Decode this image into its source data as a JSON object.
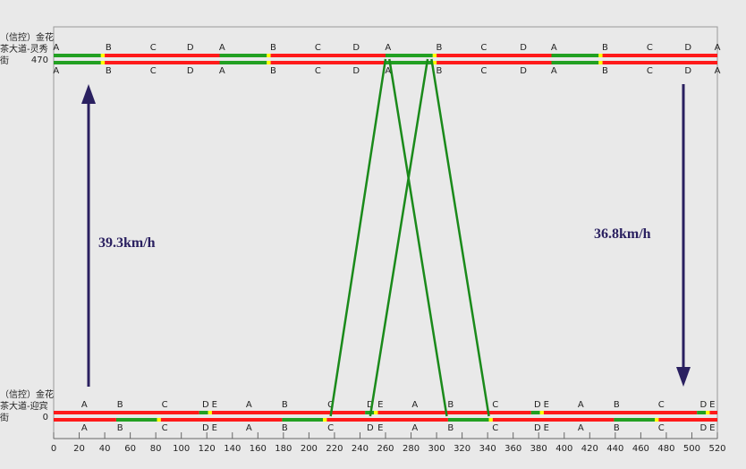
{
  "chart_data": {
    "type": "time-space",
    "xlim": [
      0,
      520
    ],
    "xticks": [
      0,
      20,
      40,
      60,
      80,
      100,
      120,
      140,
      160,
      180,
      200,
      220,
      240,
      260,
      280,
      300,
      320,
      340,
      360,
      380,
      400,
      420,
      440,
      460,
      480,
      500,
      520
    ],
    "ylim": [
      0,
      470
    ],
    "yticks": [
      0,
      470
    ],
    "intersections": [
      {
        "name": "（信控）金花茶大道-迎宾街",
        "position": 0,
        "phases": [
          {
            "label": "A",
            "t": 24
          },
          {
            "label": "B",
            "t": 52
          },
          {
            "label": "C",
            "t": 87
          },
          {
            "label": "D",
            "t": 119
          },
          {
            "label": "E",
            "t": 126
          },
          {
            "label": "A",
            "t": 153
          },
          {
            "label": "B",
            "t": 181
          },
          {
            "label": "C",
            "t": 217
          },
          {
            "label": "D",
            "t": 248
          },
          {
            "label": "E",
            "t": 256
          },
          {
            "label": "A",
            "t": 283
          },
          {
            "label": "B",
            "t": 311
          },
          {
            "label": "C",
            "t": 346
          },
          {
            "label": "D",
            "t": 379
          },
          {
            "label": "E",
            "t": 386
          },
          {
            "label": "A",
            "t": 413
          },
          {
            "label": "B",
            "t": 441
          },
          {
            "label": "C",
            "t": 476
          },
          {
            "label": "D",
            "t": 509
          },
          {
            "label": "E",
            "t": 516
          }
        ],
        "rows": [
          [
            {
              "color": "#ff1a1a",
              "start": 0,
              "end": 114
            },
            {
              "color": "#22a022",
              "start": 114,
              "end": 121
            },
            {
              "color": "#ffff00",
              "start": 121,
              "end": 124
            },
            {
              "color": "#ff1a1a",
              "start": 124,
              "end": 244
            },
            {
              "color": "#22a022",
              "start": 244,
              "end": 251
            },
            {
              "color": "#ffff00",
              "start": 251,
              "end": 254
            },
            {
              "color": "#ff1a1a",
              "start": 254,
              "end": 374
            },
            {
              "color": "#22a022",
              "start": 374,
              "end": 381
            },
            {
              "color": "#ffff00",
              "start": 381,
              "end": 384
            },
            {
              "color": "#ff1a1a",
              "start": 384,
              "end": 504
            },
            {
              "color": "#22a022",
              "start": 504,
              "end": 511
            },
            {
              "color": "#ffff00",
              "start": 511,
              "end": 514
            },
            {
              "color": "#ff1a1a",
              "start": 514,
              "end": 520
            }
          ],
          [
            {
              "color": "#ff1a1a",
              "start": 0,
              "end": 49
            },
            {
              "color": "#22a022",
              "start": 49,
              "end": 81
            },
            {
              "color": "#ffff00",
              "start": 81,
              "end": 84
            },
            {
              "color": "#ff1a1a",
              "start": 84,
              "end": 179
            },
            {
              "color": "#22a022",
              "start": 179,
              "end": 211
            },
            {
              "color": "#ffff00",
              "start": 211,
              "end": 214
            },
            {
              "color": "#ff1a1a",
              "start": 214,
              "end": 309
            },
            {
              "color": "#22a022",
              "start": 309,
              "end": 341
            },
            {
              "color": "#ffff00",
              "start": 341,
              "end": 344
            },
            {
              "color": "#ff1a1a",
              "start": 344,
              "end": 439
            },
            {
              "color": "#22a022",
              "start": 439,
              "end": 471
            },
            {
              "color": "#ffff00",
              "start": 471,
              "end": 474
            },
            {
              "color": "#ff1a1a",
              "start": 474,
              "end": 520
            }
          ]
        ]
      },
      {
        "name": "（信控）金花茶大道-灵秀街",
        "position": 470,
        "phases": [
          {
            "label": "A",
            "t": 2
          },
          {
            "label": "B",
            "t": 43
          },
          {
            "label": "C",
            "t": 78
          },
          {
            "label": "D",
            "t": 107
          },
          {
            "label": "A",
            "t": 132
          },
          {
            "label": "B",
            "t": 172
          },
          {
            "label": "C",
            "t": 207
          },
          {
            "label": "D",
            "t": 237
          },
          {
            "label": "A",
            "t": 262
          },
          {
            "label": "B",
            "t": 302
          },
          {
            "label": "C",
            "t": 337
          },
          {
            "label": "D",
            "t": 368
          },
          {
            "label": "A",
            "t": 392
          },
          {
            "label": "B",
            "t": 432
          },
          {
            "label": "C",
            "t": 467
          },
          {
            "label": "D",
            "t": 497
          },
          {
            "label": "A",
            "t": 520
          }
        ],
        "rows": [
          [
            {
              "color": "#22a022",
              "start": 0,
              "end": 37
            },
            {
              "color": "#ffff00",
              "start": 37,
              "end": 40
            },
            {
              "color": "#ff1a1a",
              "start": 40,
              "end": 130
            },
            {
              "color": "#22a022",
              "start": 130,
              "end": 167
            },
            {
              "color": "#ffff00",
              "start": 167,
              "end": 170
            },
            {
              "color": "#ff1a1a",
              "start": 170,
              "end": 260
            },
            {
              "color": "#22a022",
              "start": 260,
              "end": 297
            },
            {
              "color": "#ffff00",
              "start": 297,
              "end": 300
            },
            {
              "color": "#ff1a1a",
              "start": 300,
              "end": 390
            },
            {
              "color": "#22a022",
              "start": 390,
              "end": 427
            },
            {
              "color": "#ffff00",
              "start": 427,
              "end": 430
            },
            {
              "color": "#ff1a1a",
              "start": 430,
              "end": 520
            }
          ],
          [
            {
              "color": "#22a022",
              "start": 0,
              "end": 37
            },
            {
              "color": "#ffff00",
              "start": 37,
              "end": 40
            },
            {
              "color": "#ff1a1a",
              "start": 40,
              "end": 130
            },
            {
              "color": "#22a022",
              "start": 130,
              "end": 167
            },
            {
              "color": "#ffff00",
              "start": 167,
              "end": 170
            },
            {
              "color": "#ff1a1a",
              "start": 170,
              "end": 260
            },
            {
              "color": "#22a022",
              "start": 260,
              "end": 297
            },
            {
              "color": "#ffff00",
              "start": 297,
              "end": 300
            },
            {
              "color": "#ff1a1a",
              "start": 300,
              "end": 390
            },
            {
              "color": "#22a022",
              "start": 390,
              "end": 427
            },
            {
              "color": "#ffff00",
              "start": 427,
              "end": 430
            },
            {
              "color": "#ff1a1a",
              "start": 430,
              "end": 520
            }
          ]
        ]
      }
    ],
    "bands": [
      {
        "color": "#1a8a1a",
        "x": [
          217,
          260
        ],
        "y": [
          0,
          470
        ]
      },
      {
        "color": "#1a8a1a",
        "x": [
          248,
          293
        ],
        "y": [
          0,
          470
        ]
      },
      {
        "color": "#1a8a1a",
        "x": [
          263,
          308
        ],
        "y": [
          470,
          0
        ]
      },
      {
        "color": "#1a8a1a",
        "x": [
          296,
          341
        ],
        "y": [
          470,
          0
        ]
      }
    ],
    "speeds": [
      {
        "label": "39.3km/h"
      },
      {
        "label": "36.8km/h"
      }
    ]
  }
}
